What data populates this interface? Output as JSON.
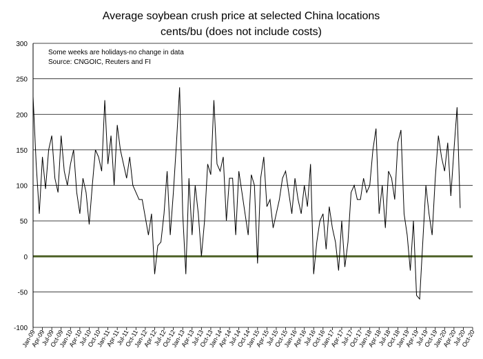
{
  "chart_data": {
    "type": "line",
    "title": "Average soybean crush price at selected China locations",
    "subtitle": "cents/bu (does not include costs)",
    "annotations": [
      "Some weeks are holidays-no change in data",
      "Source: CNGOIC, Reuters and FI"
    ],
    "categories": [
      "Jan-09",
      null,
      null,
      "Apr-09",
      null,
      null,
      "Jul-09",
      null,
      null,
      "Oct-09",
      null,
      null,
      "Jan-10",
      null,
      null,
      "Apr-10",
      null,
      null,
      "Jul-10",
      null,
      null,
      "Oct-10",
      null,
      null,
      "Jan-11",
      null,
      null,
      "Apr-11",
      null,
      null,
      "Jul-11",
      null,
      null,
      "Oct-11",
      null,
      null,
      "Jan-12",
      null,
      null,
      "Apr-12",
      null,
      null,
      "Jul-12",
      null,
      null,
      "Oct-12",
      null,
      null,
      "Jan-13",
      null,
      null,
      "Apr-13",
      null,
      null,
      "Jul-13",
      null,
      null,
      "Oct-13",
      null,
      null,
      "Jan-14",
      null,
      null,
      "Apr-14",
      null,
      null,
      "Jul-14",
      null,
      null,
      "Oct-14",
      null,
      null,
      "Jan-15",
      null,
      null,
      "Apr-15",
      null,
      null,
      "Jul-15",
      null,
      null,
      "Oct-15",
      null,
      null,
      "Jan-16",
      null,
      null,
      "Apr-16",
      null,
      null,
      "Jul-16",
      null,
      null,
      "Oct-16",
      null,
      null,
      "Jan-17",
      null,
      null,
      "Apr-17",
      null,
      null,
      "Jul-17",
      null,
      null,
      "Oct-17",
      null,
      null,
      "Jan-18",
      null,
      null,
      "Apr-18",
      null,
      null,
      "Jul-18",
      null,
      null,
      "Oct-18",
      null,
      null,
      "Jan-19",
      null,
      null,
      "Apr-19",
      null,
      null,
      "Jul-19",
      null,
      null,
      "Oct-19",
      null,
      null,
      "Jan-20",
      null,
      null,
      "Apr-20",
      null,
      null,
      "Jul-20",
      null,
      null,
      "Oct-20"
    ],
    "series": [
      {
        "color": "#000000",
        "values": [
          225,
          130,
          60,
          140,
          95,
          150,
          170,
          110,
          90,
          170,
          120,
          100,
          130,
          150,
          90,
          60,
          110,
          90,
          45,
          100,
          150,
          140,
          120,
          220,
          130,
          170,
          100,
          185,
          150,
          130,
          110,
          140,
          100,
          90,
          80,
          80,
          55,
          30,
          60,
          -25,
          15,
          20,
          60,
          120,
          30,
          90,
          160,
          238,
          60,
          -25,
          110,
          30,
          100,
          60,
          0,
          50,
          130,
          115,
          220,
          130,
          120,
          140,
          50,
          110,
          110,
          30,
          120,
          90,
          60,
          30,
          115,
          100,
          -10,
          110,
          140,
          70,
          80,
          40,
          60,
          80,
          110,
          120,
          90,
          60,
          110,
          80,
          60,
          100,
          70,
          130,
          -25,
          20,
          50,
          60,
          10,
          70,
          40,
          20,
          -20,
          50,
          -15,
          20,
          90,
          100,
          80,
          80,
          110,
          90,
          100,
          150,
          180,
          60,
          100,
          40,
          120,
          110,
          80,
          160,
          178,
          60,
          30,
          -20,
          50,
          -55,
          -60,
          20,
          100,
          60,
          30,
          110,
          170,
          140,
          120,
          160,
          85,
          150,
          210,
          68,
          null,
          null,
          null,
          null
        ]
      }
    ],
    "ylim": [
      -100,
      300
    ],
    "yticks": [
      -100,
      -50,
      0,
      50,
      100,
      150,
      200,
      250,
      300
    ],
    "grid": true,
    "zero_line_color": "#4f6228"
  }
}
